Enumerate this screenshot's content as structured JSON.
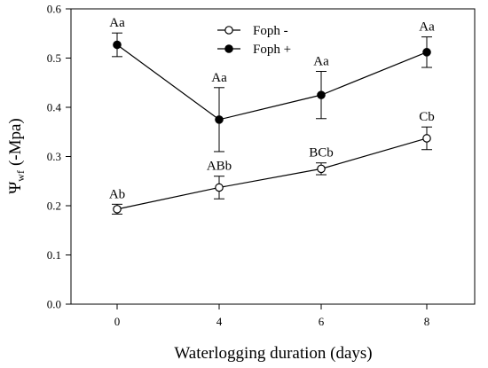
{
  "chart_data": {
    "type": "line",
    "title": "",
    "xlabel": "Waterlogging duration (days)",
    "ylabel": {
      "symbol": "Ψ",
      "subscript": "wf",
      "rest": "(-Mpa)"
    },
    "x_ticks": [
      "0",
      "4",
      "6",
      "8"
    ],
    "x": [
      0,
      4,
      6,
      8
    ],
    "ylim": [
      0.0,
      0.6
    ],
    "yticks": [
      "0.0",
      "0.1",
      "0.2",
      "0.3",
      "0.4",
      "0.5",
      "0.6"
    ],
    "legend_position": "top-center",
    "grid": false,
    "series": [
      {
        "name": "Foph -",
        "marker": "open-circle",
        "values": [
          0.193,
          0.237,
          0.275,
          0.337
        ],
        "error": [
          0.01,
          0.023,
          0.012,
          0.023
        ],
        "labels": [
          "Ab",
          "ABb",
          "BCb",
          "Cb"
        ]
      },
      {
        "name": "Foph +",
        "marker": "filled-circle",
        "values": [
          0.527,
          0.375,
          0.425,
          0.512
        ],
        "error": [
          0.024,
          0.065,
          0.048,
          0.031
        ],
        "labels": [
          "Aa",
          "Aa",
          "Aa",
          "Aa"
        ]
      }
    ]
  }
}
